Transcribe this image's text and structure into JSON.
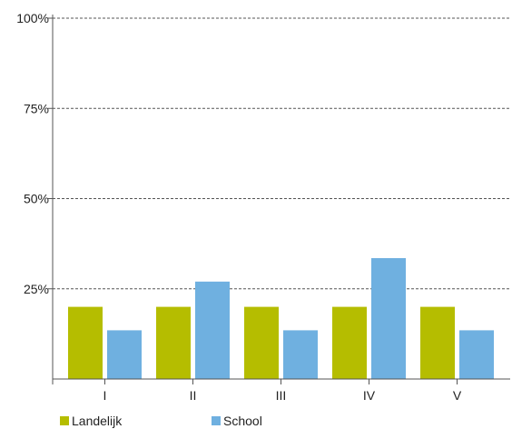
{
  "chart_data": {
    "type": "bar",
    "categories": [
      "I",
      "II",
      "III",
      "IV",
      "V"
    ],
    "series": [
      {
        "name": "Landelijk",
        "color": "#b5bd00",
        "values": [
          20,
          20,
          20,
          20,
          20
        ]
      },
      {
        "name": "School",
        "color": "#6fb0e0",
        "values": [
          13.5,
          27,
          13.5,
          33.5,
          13.5
        ]
      }
    ],
    "ylim": [
      0,
      100
    ],
    "yticks": [
      {
        "value": 25,
        "label": "25%"
      },
      {
        "value": 50,
        "label": "50%"
      },
      {
        "value": 75,
        "label": "75%"
      },
      {
        "value": 100,
        "label": "100%"
      }
    ],
    "grid": true,
    "legend_position": "bottom-left"
  }
}
